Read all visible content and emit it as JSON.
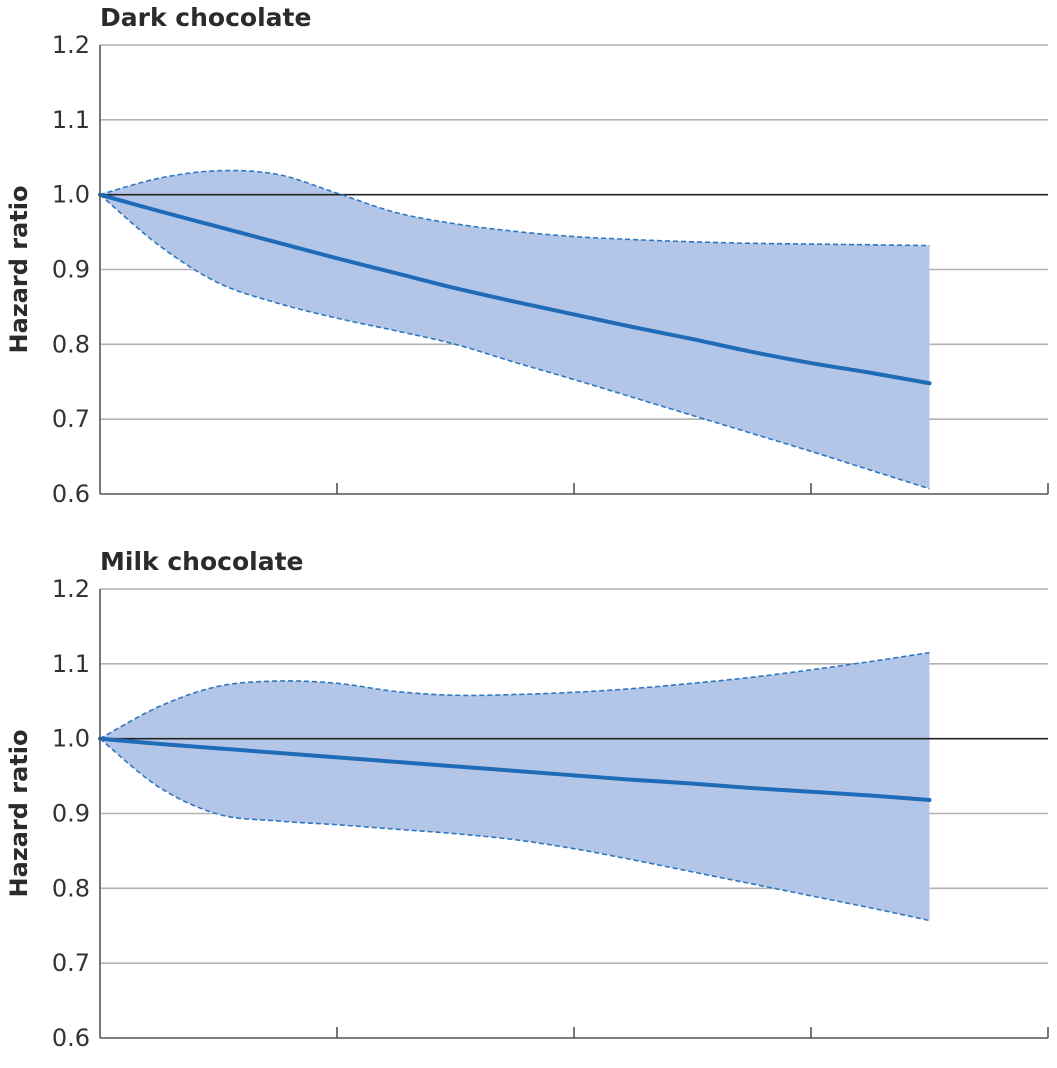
{
  "colors": {
    "band": "#b4c6e7",
    "line": "#1f6bb8",
    "ci_line": "#2f78bf",
    "grid": "#b3b3b3",
    "reference": "#222222"
  },
  "chart_data": [
    {
      "type": "line",
      "title": "Dark chocolate",
      "ylabel": "Hazard ratio",
      "xlabel": "",
      "ylim": [
        0.6,
        1.2
      ],
      "yticks": [
        "0.6",
        "0.7",
        "0.8",
        "0.9",
        "1.0",
        "1.1",
        "1.2"
      ],
      "ytick_values": [
        0.6,
        0.7,
        0.8,
        0.9,
        1.0,
        1.1,
        1.2
      ],
      "xlim": [
        0,
        4
      ],
      "xtick_positions": [
        0,
        1,
        2,
        3,
        4
      ],
      "reference_line": 1.0,
      "grid": true,
      "x": [
        0,
        0.25,
        0.5,
        0.75,
        1.0,
        1.25,
        1.5,
        1.75,
        2.0,
        2.25,
        2.5,
        2.75,
        3.0,
        3.25,
        3.5
      ],
      "estimate": [
        1.0,
        0.978,
        0.957,
        0.936,
        0.915,
        0.895,
        0.875,
        0.857,
        0.84,
        0.823,
        0.807,
        0.79,
        0.775,
        0.762,
        0.748
      ],
      "upper_ci": [
        1.0,
        1.022,
        1.032,
        1.027,
        1.002,
        0.976,
        0.961,
        0.951,
        0.944,
        0.94,
        0.937,
        0.935,
        0.934,
        0.933,
        0.932
      ],
      "lower_ci": [
        1.0,
        0.932,
        0.882,
        0.855,
        0.835,
        0.818,
        0.8,
        0.776,
        0.753,
        0.729,
        0.705,
        0.681,
        0.657,
        0.632,
        0.607
      ]
    },
    {
      "type": "line",
      "title": "Milk chocolate",
      "ylabel": "Hazard ratio",
      "xlabel": "",
      "ylim": [
        0.6,
        1.2
      ],
      "yticks": [
        "0.6",
        "0.7",
        "0.8",
        "0.9",
        "1.0",
        "1.1",
        "1.2"
      ],
      "ytick_values": [
        0.6,
        0.7,
        0.8,
        0.9,
        1.0,
        1.1,
        1.2
      ],
      "xlim": [
        0,
        4
      ],
      "xtick_positions": [
        0,
        1,
        2,
        3,
        4
      ],
      "reference_line": 1.0,
      "grid": true,
      "x": [
        0,
        0.25,
        0.5,
        0.75,
        1.0,
        1.25,
        1.5,
        1.75,
        2.0,
        2.25,
        2.5,
        2.75,
        3.0,
        3.25,
        3.5
      ],
      "estimate": [
        1.0,
        0.993,
        0.987,
        0.981,
        0.975,
        0.969,
        0.963,
        0.957,
        0.951,
        0.945,
        0.94,
        0.934,
        0.929,
        0.924,
        0.918
      ],
      "upper_ci": [
        1.0,
        1.043,
        1.07,
        1.077,
        1.074,
        1.063,
        1.058,
        1.059,
        1.062,
        1.067,
        1.074,
        1.082,
        1.092,
        1.103,
        1.115
      ],
      "lower_ci": [
        1.0,
        0.935,
        0.899,
        0.89,
        0.885,
        0.879,
        0.873,
        0.865,
        0.853,
        0.838,
        0.822,
        0.806,
        0.79,
        0.774,
        0.757
      ]
    }
  ]
}
